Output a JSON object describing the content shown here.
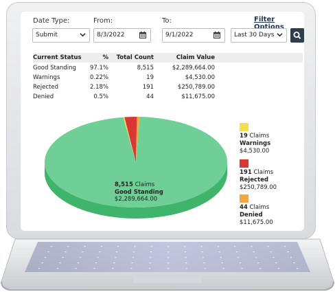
{
  "filters": {
    "date_type_label": "Date Type:",
    "from_label": "From:",
    "to_label": "To:",
    "filter_options_link": "Filter Options",
    "date_type_value": "Submit",
    "from_value": "8/3/2022",
    "to_value": "9/1/2022",
    "range_value": "Last 30 Days"
  },
  "table": {
    "headers": [
      "Current Status",
      "%",
      "Total Count",
      "Claim Value"
    ],
    "rows": [
      {
        "status": "Good Standing",
        "pct": "97.1%",
        "count": "8,515",
        "value": "$2,289,664.00"
      },
      {
        "status": "Warnings",
        "pct": "0.22%",
        "count": "19",
        "value": "$4,530.00"
      },
      {
        "status": "Rejected",
        "pct": "2.18%",
        "count": "191",
        "value": "$250,789.00"
      },
      {
        "status": "Denied",
        "pct": "0.5%",
        "count": "44",
        "value": "$11,675.00"
      }
    ]
  },
  "chart_data": {
    "type": "pie",
    "title": "",
    "series": [
      {
        "name": "Good Standing",
        "count": 8515,
        "count_label": "8,515",
        "unit": "Claims",
        "value": "$2,289,664.00",
        "color": "#6fcf96"
      },
      {
        "name": "Warnings",
        "count": 19,
        "count_label": "19",
        "unit": "Claims",
        "value": "$4,530.00",
        "color": "#f4e04d"
      },
      {
        "name": "Rejected",
        "count": 191,
        "count_label": "191",
        "unit": "Claims",
        "value": "$250,789.00",
        "color": "#d93636"
      },
      {
        "name": "Denied",
        "count": 44,
        "count_label": "44",
        "unit": "Claims",
        "value": "$11,675.00",
        "color": "#f4a640"
      }
    ],
    "legend_placement": "right"
  },
  "colors": {
    "accent": "#1d3550",
    "search_button": "#2e3e4e",
    "good_dark": "#3fb56b"
  },
  "icons": {
    "chevron": "chevron-down-icon",
    "calendar": "calendar-icon",
    "search": "search-icon"
  }
}
